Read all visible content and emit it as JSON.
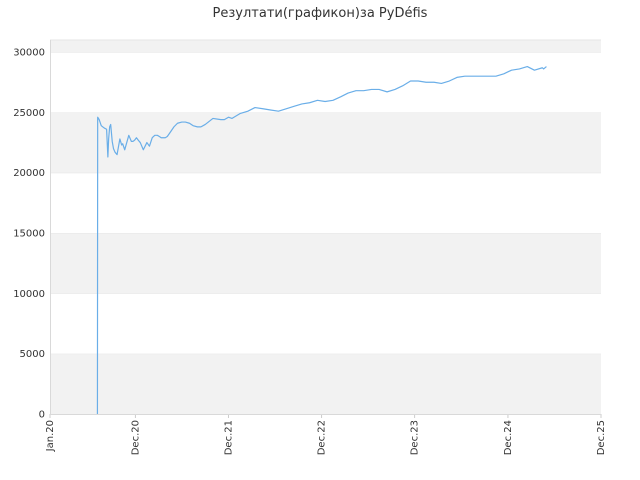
{
  "chart_data": {
    "type": "line",
    "title": "Резултати(графикон)за PyDéfis",
    "xlabel": "",
    "ylabel": "",
    "xlim": [
      "2020-01",
      "2025-12"
    ],
    "ylim": [
      0,
      31000
    ],
    "yticks": [
      0,
      5000,
      10000,
      15000,
      20000,
      25000,
      30000
    ],
    "xticks": [
      {
        "date": "2020-01",
        "label": "Jan.20"
      },
      {
        "date": "2020-12",
        "label": "Dec.20"
      },
      {
        "date": "2021-12",
        "label": "Dec.21"
      },
      {
        "date": "2022-12",
        "label": "Dec.22"
      },
      {
        "date": "2023-12",
        "label": "Dec.23"
      },
      {
        "date": "2024-12",
        "label": "Dec.24"
      },
      {
        "date": "2025-12",
        "label": "Dec.25"
      }
    ],
    "grid": "horizontal alternating bands",
    "band_color": "#f2f2f2",
    "line_color": "#6aaee8",
    "series": [
      {
        "x": [
          "2020-07-05",
          "2020-07-06",
          "2020-07-12",
          "2020-07-20",
          "2020-08-01",
          "2020-08-10",
          "2020-08-15",
          "2020-08-18",
          "2020-08-22",
          "2020-08-26",
          "2020-09-01",
          "2020-09-06",
          "2020-09-12",
          "2020-09-20",
          "2020-10-01",
          "2020-10-08",
          "2020-10-12",
          "2020-10-20",
          "2020-10-28",
          "2020-11-05",
          "2020-11-15",
          "2020-11-22",
          "2020-11-28",
          "2020-12-05",
          "2020-12-12",
          "2020-12-20",
          "2021-01-01",
          "2021-01-15",
          "2021-01-25",
          "2021-02-05",
          "2021-02-15",
          "2021-02-25",
          "2021-03-05",
          "2021-03-12",
          "2021-03-20",
          "2021-03-28",
          "2021-04-05",
          "2021-04-15",
          "2021-05-01",
          "2021-05-15",
          "2021-06-01",
          "2021-06-15",
          "2021-07-01",
          "2021-07-15",
          "2021-08-01",
          "2021-08-15",
          "2021-09-01",
          "2021-10-01",
          "2021-11-01",
          "2021-11-15",
          "2021-12-01",
          "2021-12-15",
          "2022-01-15",
          "2022-02-15",
          "2022-03-15",
          "2022-04-15",
          "2022-05-15",
          "2022-06-15",
          "2022-07-15",
          "2022-08-15",
          "2022-09-15",
          "2022-10-15",
          "2022-11-15",
          "2022-12-15",
          "2023-01-15",
          "2023-02-15",
          "2023-03-15",
          "2023-04-15",
          "2023-05-15",
          "2023-06-15",
          "2023-07-15",
          "2023-08-15",
          "2023-09-15",
          "2023-10-15",
          "2023-11-15",
          "2023-12-15",
          "2024-01-15",
          "2024-02-15",
          "2024-03-15",
          "2024-04-15",
          "2024-05-15",
          "2024-06-15",
          "2024-07-15",
          "2024-08-15",
          "2024-09-15",
          "2024-10-15",
          "2024-11-15",
          "2024-12-15",
          "2025-01-15",
          "2025-02-15",
          "2025-03-15",
          "2025-04-15",
          "2025-04-20",
          "2025-05-01"
        ],
        "y": [
          0,
          24600,
          24400,
          23900,
          23700,
          23600,
          21300,
          22800,
          23800,
          24000,
          22600,
          22000,
          21700,
          21500,
          22800,
          22300,
          22400,
          21900,
          22500,
          23100,
          22600,
          22600,
          22700,
          22900,
          22700,
          22500,
          21900,
          22500,
          22200,
          22900,
          23100,
          23100,
          23000,
          22900,
          22900,
          22900,
          23000,
          23300,
          23800,
          24100,
          24200,
          24200,
          24100,
          23900,
          23800,
          23800,
          24000,
          24500,
          24400,
          24400,
          24600,
          24500,
          24900,
          25100,
          25400,
          25300,
          25200,
          25100,
          25300,
          25500,
          25700,
          25800,
          26000,
          25900,
          26000,
          26300,
          26600,
          26800,
          26800,
          26900,
          26900,
          26700,
          26900,
          27200,
          27600,
          27600,
          27500,
          27500,
          27400,
          27600,
          27900,
          28000,
          28000,
          28000,
          28000,
          28000,
          28200,
          28500,
          28600,
          28800,
          28500,
          28700,
          28600,
          28800
        ]
      }
    ]
  }
}
